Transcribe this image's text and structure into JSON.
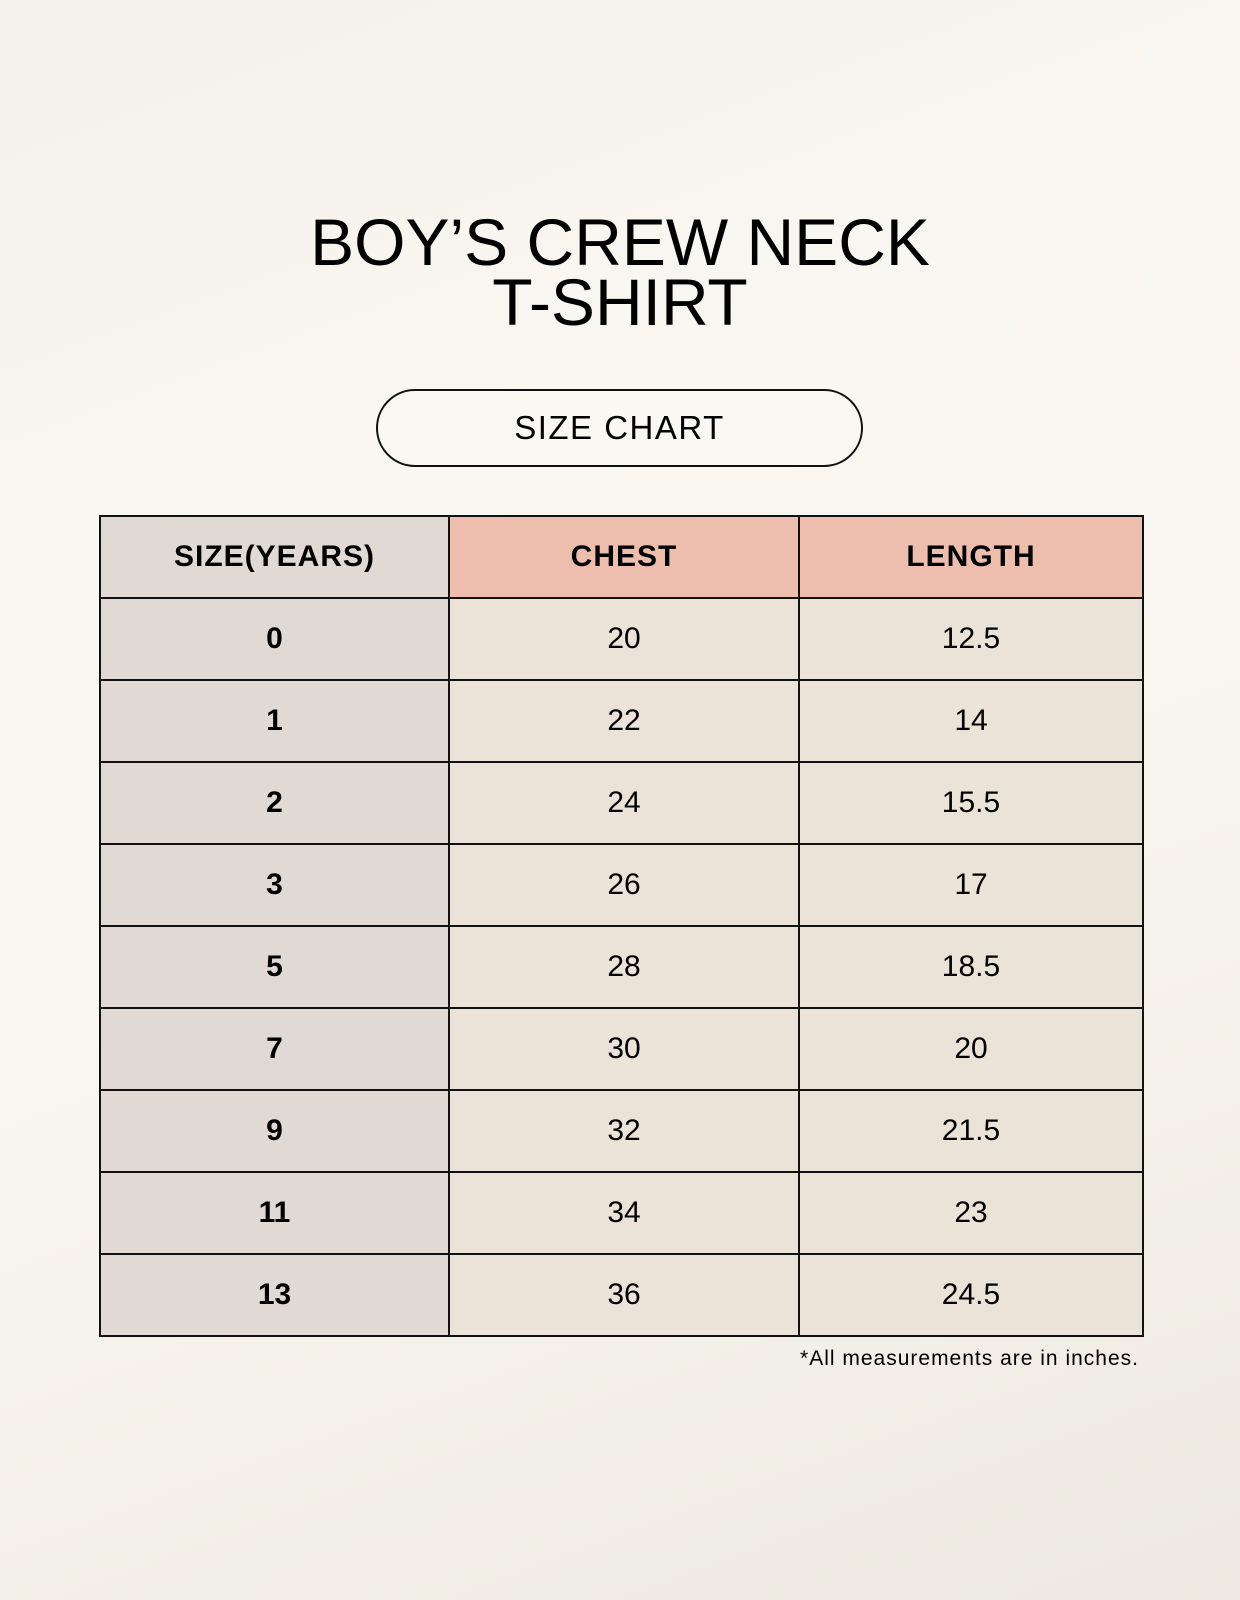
{
  "title": {
    "line1": "BOY’S CREW NECK",
    "line2": "T-SHIRT"
  },
  "badge": "SIZE CHART",
  "table": {
    "headers": [
      "SIZE(YEARS)",
      "CHEST",
      "LENGTH"
    ],
    "rows": [
      [
        "0",
        "20",
        "12.5"
      ],
      [
        "1",
        "22",
        "14"
      ],
      [
        "2",
        "24",
        "15.5"
      ],
      [
        "3",
        "26",
        "17"
      ],
      [
        "5",
        "28",
        "18.5"
      ],
      [
        "7",
        "30",
        "20"
      ],
      [
        "9",
        "32",
        "21.5"
      ],
      [
        "11",
        "34",
        "23"
      ],
      [
        "13",
        "36",
        "24.5"
      ]
    ]
  },
  "footnote": "*All measurements are in inches.",
  "colors": {
    "size_column": "#e0d9d4",
    "header_accent": "#edbdae",
    "cell": "#ebe2d8"
  }
}
